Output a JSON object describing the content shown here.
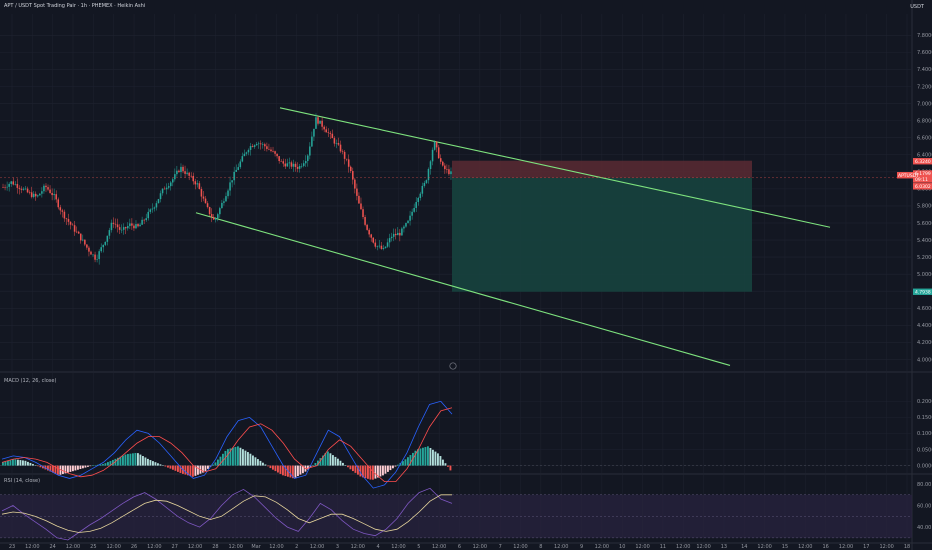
{
  "header": {
    "title": "APT / USDT Spot Trading Pair · 1h · PHEMEX · Heikin Ashi",
    "unit": "USDT"
  },
  "colors": {
    "background": "#131722",
    "grid": "#1f2330",
    "up": "#26a69a",
    "down": "#ef5350",
    "channel": "#7ee37e",
    "stop_zone": "#5b2a33",
    "target_zone": "#17423e",
    "macd_line": "#2962ff",
    "signal_line": "#ff4d4d",
    "rsi_line": "#7e57c2",
    "rsi_ma": "#e6d59c",
    "rsi_band": "#2a2440"
  },
  "chart_data": [
    {
      "type": "candlestick",
      "pane": "price",
      "title": "APT / USDT Spot Trading Pair · 1h · PHEMEX · Heikin Ashi",
      "ylabel": "USDT",
      "ylim": [
        3.9,
        8.05
      ],
      "y_ticks": [
        "7.8000",
        "7.6000",
        "7.4000",
        "7.2000",
        "7.0000",
        "6.8000",
        "6.6000",
        "6.4000",
        "6.2000",
        "6.0000",
        "5.8000",
        "5.6000",
        "5.4000",
        "5.2000",
        "5.0000",
        "4.8000",
        "4.6000",
        "4.4000",
        "4.2000",
        "4.0000"
      ],
      "x_ticks": [
        "23",
        "12:00",
        "24",
        "12:00",
        "25",
        "12:00",
        "26",
        "12:00",
        "27",
        "12:00",
        "28",
        "12:00",
        "Mar",
        "12:00",
        "2",
        "12:00",
        "3",
        "12:00",
        "4",
        "12:00",
        "5",
        "12:00",
        "6",
        "12:00",
        "7",
        "12:00",
        "8",
        "12:00",
        "9",
        "12:00",
        "10",
        "12:00",
        "11",
        "12:00",
        "12:00",
        "13",
        "14",
        "12:00",
        "15",
        "12:00",
        "16",
        "12:00",
        "17",
        "12:00",
        "18"
      ],
      "key_prices": [
        {
          "label": "6.3240",
          "value": 6.324,
          "color": "#ef5350"
        },
        {
          "label": "6.1561",
          "value": 6.1561,
          "color": "#ef5350"
        },
        {
          "label": "6.1799",
          "value": 6.1799,
          "color": "#ef5350"
        },
        {
          "label": "09:11",
          "value": 6.11,
          "color": "#ef5350"
        },
        {
          "label": "6.0302",
          "value": 6.0302,
          "color": "#ef5350"
        },
        {
          "label": "4.7938",
          "value": 4.7938,
          "color": "#26a69a"
        }
      ],
      "current_price_label": "APTUSDT",
      "position": {
        "entry": 6.13,
        "stop": 6.33,
        "target": 4.7938
      },
      "channel_upper": [
        {
          "x": 0.0,
          "y": 6.95
        },
        {
          "x": 1.0,
          "y": 5.55
        }
      ],
      "channel_lower": [
        {
          "x": 0.0,
          "y": 5.72
        },
        {
          "x": 1.0,
          "y": 3.93
        }
      ],
      "path": [
        6.02,
        6.08,
        6.02,
        5.95,
        5.9,
        6.03,
        5.92,
        5.72,
        5.58,
        5.45,
        5.3,
        5.18,
        5.38,
        5.62,
        5.5,
        5.58,
        5.55,
        5.68,
        5.82,
        6.0,
        6.1,
        6.25,
        6.15,
        6.05,
        5.8,
        5.62,
        5.85,
        6.1,
        6.3,
        6.48,
        6.55,
        6.5,
        6.42,
        6.3,
        6.28,
        6.25,
        6.38,
        6.82,
        6.72,
        6.58,
        6.45,
        6.25,
        5.85,
        5.55,
        5.35,
        5.28,
        5.45,
        5.48,
        5.62,
        5.9,
        6.08,
        6.55,
        6.25,
        6.18
      ]
    },
    {
      "type": "histogram+line",
      "pane": "macd",
      "title": "MACD (12, 26, close)",
      "ylim": [
        -0.02,
        0.26
      ],
      "y_ticks": [
        "0.2000",
        "0.1500",
        "0.1000",
        "0.0500",
        "0.0000"
      ],
      "series": [
        {
          "name": "Histogram",
          "values": [
            0.01,
            0.02,
            0.015,
            0.0,
            -0.015,
            -0.03,
            -0.02,
            -0.01,
            0.0,
            0.005,
            0.02,
            0.035,
            0.04,
            0.02,
            0.005,
            -0.01,
            -0.025,
            -0.035,
            -0.02,
            0.01,
            0.05,
            0.06,
            0.04,
            0.015,
            -0.01,
            -0.03,
            -0.04,
            -0.02,
            0.01,
            0.045,
            0.02,
            -0.01,
            -0.035,
            -0.045,
            -0.03,
            -0.005,
            0.02,
            0.05,
            0.06,
            0.035,
            -0.015
          ]
        },
        {
          "name": "MACD",
          "values": [
            0.02,
            0.03,
            0.025,
            0.01,
            -0.01,
            -0.03,
            -0.04,
            -0.03,
            -0.01,
            0.01,
            0.04,
            0.08,
            0.11,
            0.1,
            0.07,
            0.03,
            -0.01,
            -0.04,
            -0.03,
            0.02,
            0.09,
            0.14,
            0.15,
            0.12,
            0.06,
            0.0,
            -0.04,
            -0.03,
            0.04,
            0.11,
            0.09,
            0.03,
            -0.03,
            -0.07,
            -0.06,
            -0.02,
            0.04,
            0.12,
            0.19,
            0.2,
            0.16
          ]
        },
        {
          "name": "Signal",
          "values": [
            0.01,
            0.02,
            0.025,
            0.02,
            0.01,
            -0.01,
            -0.025,
            -0.035,
            -0.03,
            -0.015,
            0.01,
            0.04,
            0.07,
            0.09,
            0.09,
            0.07,
            0.04,
            0.0,
            -0.02,
            -0.01,
            0.03,
            0.08,
            0.12,
            0.13,
            0.11,
            0.07,
            0.02,
            -0.01,
            0.0,
            0.05,
            0.08,
            0.06,
            0.02,
            -0.02,
            -0.05,
            -0.05,
            -0.01,
            0.05,
            0.12,
            0.17,
            0.18
          ]
        }
      ]
    },
    {
      "type": "line",
      "pane": "rsi",
      "title": "RSI (14, close)",
      "ylim": [
        28,
        80
      ],
      "band": [
        30,
        70
      ],
      "y_ticks": [
        "80.00",
        "60.00",
        "40.00"
      ],
      "series": [
        {
          "name": "RSI",
          "values": [
            55,
            60,
            52,
            45,
            38,
            30,
            28,
            35,
            42,
            48,
            55,
            62,
            68,
            72,
            66,
            58,
            50,
            44,
            40,
            48,
            60,
            70,
            75,
            68,
            58,
            48,
            40,
            36,
            48,
            62,
            56,
            46,
            38,
            34,
            32,
            38,
            48,
            62,
            72,
            76,
            66,
            62
          ]
        },
        {
          "name": "RSI MA",
          "values": [
            52,
            54,
            53,
            50,
            46,
            41,
            37,
            35,
            36,
            39,
            44,
            50,
            56,
            62,
            65,
            64,
            60,
            55,
            50,
            47,
            50,
            57,
            64,
            69,
            68,
            63,
            56,
            48,
            44,
            48,
            52,
            52,
            48,
            43,
            38,
            36,
            38,
            45,
            54,
            64,
            70,
            70
          ]
        }
      ]
    }
  ]
}
